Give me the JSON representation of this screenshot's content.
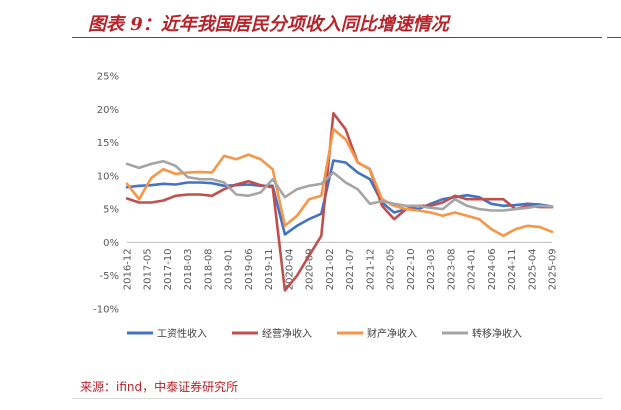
{
  "title": "图表 9：近年我国居民分项收入同比增速情况",
  "source": "来源：ifind，中泰证券研究所",
  "chart_data": {
    "type": "line",
    "title": "",
    "xlabel": "",
    "ylabel": "",
    "ylim": [
      -10,
      25
    ],
    "yticks": [
      "25%",
      "20%",
      "15%",
      "10%",
      "5%",
      "0%",
      "-5%",
      "-10%"
    ],
    "ytick_values": [
      25,
      20,
      15,
      10,
      5,
      0,
      -5,
      -10
    ],
    "xtick_labels": [
      "2016-12",
      "2017-05",
      "2017-10",
      "2018-03",
      "2018-08",
      "2019-01",
      "2019-06",
      "2019-11",
      "2020-04",
      "2020-09",
      "2021-02",
      "2021-07",
      "2021-12",
      "2022-05",
      "2022-10",
      "2023-03",
      "2023-08",
      "2024-01",
      "2024-06",
      "2024-11",
      "2025-04",
      "2025-09"
    ],
    "x": [
      "2016-12",
      "2017-03",
      "2017-06",
      "2017-09",
      "2017-12",
      "2018-03",
      "2018-06",
      "2018-09",
      "2018-12",
      "2019-03",
      "2019-06",
      "2019-09",
      "2019-12",
      "2020-03",
      "2020-06",
      "2020-09",
      "2020-12",
      "2021-03",
      "2021-06",
      "2021-09",
      "2021-12",
      "2022-03",
      "2022-06",
      "2022-09",
      "2022-12",
      "2023-03",
      "2023-06",
      "2023-09",
      "2023-12",
      "2024-03",
      "2024-06",
      "2024-09",
      "2024-12",
      "2025-03",
      "2025-06",
      "2025-09"
    ],
    "grid": false,
    "legend_position": "bottom",
    "series": [
      {
        "name": "工资性收入",
        "color": "#4472c4",
        "values": [
          8.3,
          8.5,
          8.6,
          8.8,
          8.7,
          9.0,
          9.0,
          8.9,
          8.5,
          8.6,
          8.7,
          8.5,
          8.5,
          1.2,
          2.5,
          3.5,
          4.3,
          12.3,
          12.0,
          10.5,
          9.5,
          6.0,
          4.5,
          5.0,
          5.0,
          5.8,
          6.5,
          6.8,
          7.1,
          6.8,
          5.8,
          5.5,
          5.6,
          5.8,
          5.7,
          5.4
        ]
      },
      {
        "name": "经营净收入",
        "color": "#c0504d",
        "values": [
          6.6,
          6.0,
          6.0,
          6.3,
          7.0,
          7.2,
          7.2,
          7.0,
          8.0,
          8.7,
          9.2,
          8.6,
          8.3,
          -7.2,
          -5.0,
          -2.0,
          1.0,
          19.4,
          17.0,
          12.0,
          11.0,
          5.5,
          3.5,
          5.0,
          5.5,
          5.5,
          6.0,
          7.0,
          6.5,
          6.5,
          6.5,
          6.5,
          5.0,
          5.5,
          5.3,
          5.3
        ]
      },
      {
        "name": "财产净收入",
        "color": "#f79646",
        "values": [
          8.8,
          6.5,
          9.7,
          11.0,
          10.3,
          10.5,
          10.6,
          10.5,
          13.0,
          12.5,
          13.2,
          12.5,
          11.0,
          2.5,
          4.0,
          6.5,
          7.0,
          17.0,
          15.5,
          12.0,
          11.0,
          6.5,
          5.5,
          5.0,
          4.8,
          4.5,
          4.0,
          4.5,
          4.0,
          3.5,
          2.0,
          1.0,
          2.0,
          2.5,
          2.3,
          1.6
        ]
      },
      {
        "name": "转移净收入",
        "color": "#a5a5a5",
        "values": [
          11.8,
          11.2,
          11.8,
          12.2,
          11.5,
          9.8,
          9.5,
          9.5,
          9.0,
          7.2,
          7.0,
          7.5,
          9.5,
          6.8,
          8.0,
          8.5,
          8.8,
          10.5,
          9.0,
          8.0,
          5.8,
          6.2,
          5.8,
          5.5,
          5.5,
          5.2,
          5.0,
          6.5,
          5.5,
          5.0,
          4.8,
          4.8,
          5.0,
          5.2,
          5.5,
          5.4
        ]
      }
    ]
  }
}
